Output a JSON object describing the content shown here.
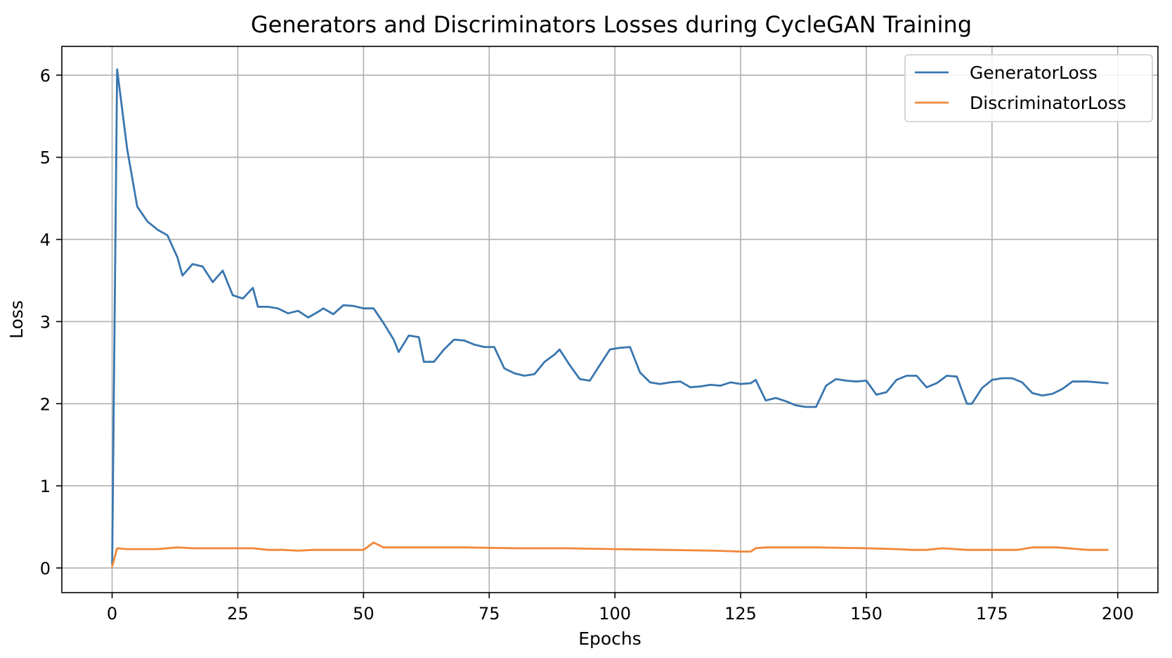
{
  "chart_data": {
    "type": "line",
    "title": "Generators and Discriminators Losses during CycleGAN Training",
    "xlabel": "Epochs",
    "ylabel": "Loss",
    "xlim": [
      -10,
      208
    ],
    "ylim": [
      -0.3,
      6.35
    ],
    "xticks": [
      0,
      25,
      50,
      75,
      100,
      125,
      150,
      175,
      200
    ],
    "yticks": [
      0,
      1,
      2,
      3,
      4,
      5,
      6
    ],
    "grid": true,
    "legend_position": "top-right",
    "series": [
      {
        "name": "GeneratorLoss",
        "color": "#3a76af",
        "x": [
          0,
          1,
          3,
          5,
          7,
          9,
          11,
          13,
          14,
          16,
          18,
          20,
          22,
          24,
          26,
          28,
          29,
          31,
          33,
          35,
          37,
          39,
          41,
          42,
          44,
          46,
          48,
          50,
          52,
          54,
          56,
          57,
          59,
          61,
          62,
          64,
          66,
          68,
          70,
          72,
          74,
          76,
          78,
          80,
          82,
          84,
          86,
          88,
          89,
          91,
          93,
          95,
          97,
          99,
          101,
          103,
          105,
          107,
          109,
          111,
          113,
          115,
          117,
          119,
          121,
          123,
          125,
          127,
          128,
          130,
          132,
          134,
          136,
          138,
          140,
          142,
          144,
          146,
          148,
          150,
          152,
          154,
          156,
          158,
          160,
          162,
          164,
          166,
          168,
          170,
          171,
          173,
          175,
          177,
          179,
          181,
          183,
          185,
          187,
          189,
          191,
          194,
          198
        ],
        "y": [
          0.05,
          6.07,
          5.1,
          4.4,
          4.22,
          4.12,
          4.05,
          3.78,
          3.56,
          3.7,
          3.67,
          3.48,
          3.62,
          3.32,
          3.28,
          3.41,
          3.18,
          3.18,
          3.16,
          3.1,
          3.13,
          3.05,
          3.12,
          3.16,
          3.09,
          3.2,
          3.19,
          3.16,
          3.16,
          2.98,
          2.78,
          2.63,
          2.83,
          2.81,
          2.51,
          2.51,
          2.66,
          2.78,
          2.77,
          2.72,
          2.69,
          2.69,
          2.43,
          2.37,
          2.34,
          2.36,
          2.51,
          2.6,
          2.66,
          2.47,
          2.3,
          2.28,
          2.47,
          2.66,
          2.68,
          2.69,
          2.38,
          2.26,
          2.24,
          2.26,
          2.27,
          2.2,
          2.21,
          2.23,
          2.22,
          2.26,
          2.24,
          2.25,
          2.29,
          2.04,
          2.07,
          2.03,
          1.98,
          1.96,
          1.96,
          2.22,
          2.3,
          2.28,
          2.27,
          2.28,
          2.11,
          2.14,
          2.29,
          2.34,
          2.34,
          2.2,
          2.25,
          2.34,
          2.33,
          2.0,
          2.0,
          2.19,
          2.29,
          2.31,
          2.31,
          2.26,
          2.13,
          2.1,
          2.12,
          2.18,
          2.27,
          2.27,
          2.25
        ]
      },
      {
        "name": "DiscriminatorLoss",
        "color": "#f0883a",
        "x": [
          0,
          1,
          3,
          5,
          7,
          9,
          11,
          13,
          16,
          20,
          24,
          28,
          31,
          34,
          37,
          40,
          42,
          46,
          50,
          52,
          54,
          60,
          70,
          80,
          90,
          100,
          110,
          120,
          125,
          127,
          128,
          130,
          140,
          150,
          156,
          159,
          162,
          165,
          170,
          175,
          180,
          183,
          188,
          194,
          198
        ],
        "y": [
          0.02,
          0.24,
          0.23,
          0.23,
          0.23,
          0.23,
          0.24,
          0.25,
          0.24,
          0.24,
          0.24,
          0.24,
          0.22,
          0.22,
          0.21,
          0.22,
          0.22,
          0.22,
          0.22,
          0.31,
          0.25,
          0.25,
          0.25,
          0.24,
          0.24,
          0.23,
          0.22,
          0.21,
          0.2,
          0.2,
          0.24,
          0.25,
          0.25,
          0.24,
          0.23,
          0.22,
          0.22,
          0.24,
          0.22,
          0.22,
          0.22,
          0.25,
          0.25,
          0.22,
          0.22
        ]
      }
    ]
  }
}
